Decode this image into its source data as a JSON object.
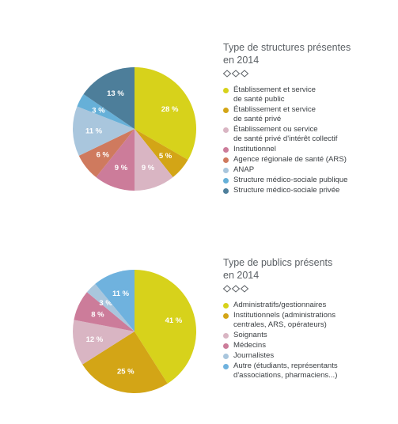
{
  "chart_data": [
    {
      "type": "pie",
      "title": "Type de structures présentes\nen 2014",
      "slices": [
        {
          "label": "Établissement et service\nde santé public",
          "value": 28,
          "value_label": "28 %",
          "color": "#d7d21b"
        },
        {
          "label": "Établissement et service\nde santé privé",
          "value": 5,
          "value_label": "5 %",
          "color": "#d3a516"
        },
        {
          "label": "Établissement ou service\nde santé privé d'intérêt collectif",
          "value": 9,
          "value_label": "9 %",
          "color": "#d9b5c3"
        },
        {
          "label": "Institutionnel",
          "value": 9,
          "value_label": "9 %",
          "color": "#cc7c9a"
        },
        {
          "label": "Agence régionale de santé (ARS)",
          "value": 6,
          "value_label": "6 %",
          "color": "#cf7a5e"
        },
        {
          "label": "ANAP",
          "value": 11,
          "value_label": "11 %",
          "color": "#a9c6dd"
        },
        {
          "label": "Structure médico-sociale publique",
          "value": 3,
          "value_label": "3 %",
          "color": "#66b0d8"
        },
        {
          "label": "Structure médico-sociale privée",
          "value": 13,
          "value_label": "13 %",
          "color": "#4d7e9a"
        }
      ]
    },
    {
      "type": "pie",
      "title": "Type de publics présents\nen 2014",
      "slices": [
        {
          "label": "Administratifs/gestionnaires",
          "value": 41,
          "value_label": "41 %",
          "color": "#d7d21b"
        },
        {
          "label": "Institutionnels (administrations\ncentrales, ARS, opérateurs)",
          "value": 25,
          "value_label": "25 %",
          "color": "#d3a516"
        },
        {
          "label": "Soignants",
          "value": 12,
          "value_label": "12 %",
          "color": "#d9b5c3"
        },
        {
          "label": "Médecins",
          "value": 8,
          "value_label": "8 %",
          "color": "#cc7c9a"
        },
        {
          "label": "Journalistes",
          "value": 3,
          "value_label": "3 %",
          "color": "#a9c6dd"
        },
        {
          "label": "Autre (étudiants, représentants\nd'associations, pharmaciens...)",
          "value": 11,
          "value_label": "11 %",
          "color": "#6fb2de"
        }
      ]
    }
  ],
  "diamond_color": "#5b6065"
}
